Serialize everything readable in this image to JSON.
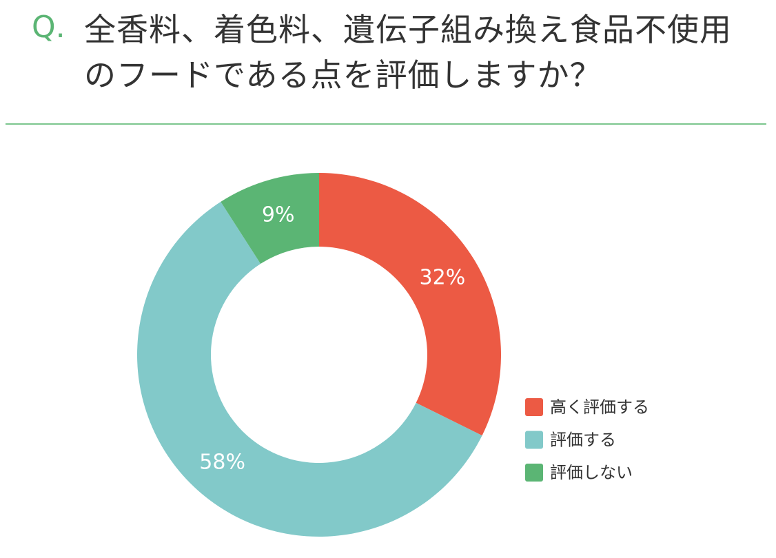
{
  "chart_data": {
    "type": "pie",
    "title_prefix": "Q.",
    "title": "全香料、着色料、遺伝子組み換え食品不使用のフードである点を評価しますか？",
    "categories": [
      "高く評価する",
      "評価する",
      "評価しない"
    ],
    "values": [
      32,
      58,
      9
    ],
    "value_labels": [
      "32%",
      "58%",
      "9%"
    ],
    "colors": [
      "#ec5a44",
      "#82c9c9",
      "#5bb574"
    ],
    "donut": true,
    "legend": "right"
  }
}
